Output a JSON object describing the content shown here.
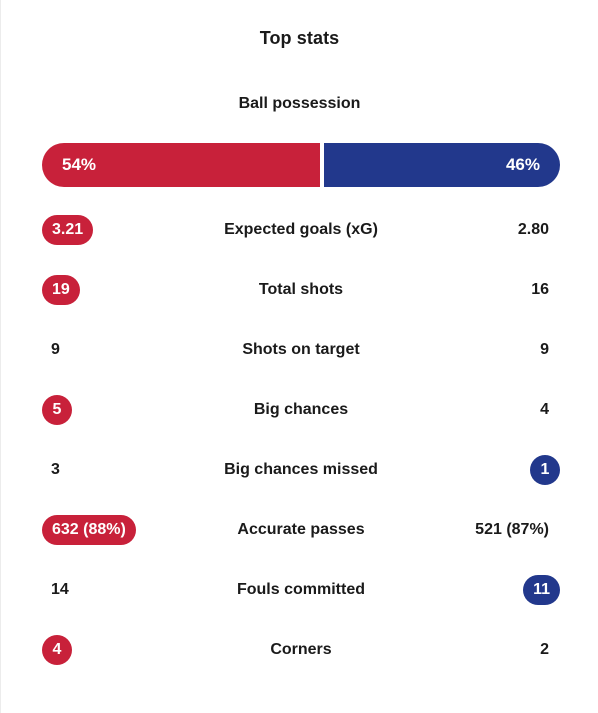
{
  "title": "Top stats",
  "colors": {
    "home": "#c8213a",
    "away": "#22388c"
  },
  "possession": {
    "label": "Ball possession",
    "home": "54%",
    "away": "46%",
    "home_fraction": 0.54,
    "away_fraction": 0.46
  },
  "stats": [
    {
      "label": "Expected goals (xG)",
      "home": "3.21",
      "away": "2.80",
      "highlight": "home"
    },
    {
      "label": "Total shots",
      "home": "19",
      "away": "16",
      "highlight": "home"
    },
    {
      "label": "Shots on target",
      "home": "9",
      "away": "9",
      "highlight": "none"
    },
    {
      "label": "Big chances",
      "home": "5",
      "away": "4",
      "highlight": "home"
    },
    {
      "label": "Big chances missed",
      "home": "3",
      "away": "1",
      "highlight": "away"
    },
    {
      "label": "Accurate passes",
      "home": "632 (88%)",
      "away": "521 (87%)",
      "highlight": "home"
    },
    {
      "label": "Fouls committed",
      "home": "14",
      "away": "11",
      "highlight": "away"
    },
    {
      "label": "Corners",
      "home": "4",
      "away": "2",
      "highlight": "home"
    }
  ]
}
